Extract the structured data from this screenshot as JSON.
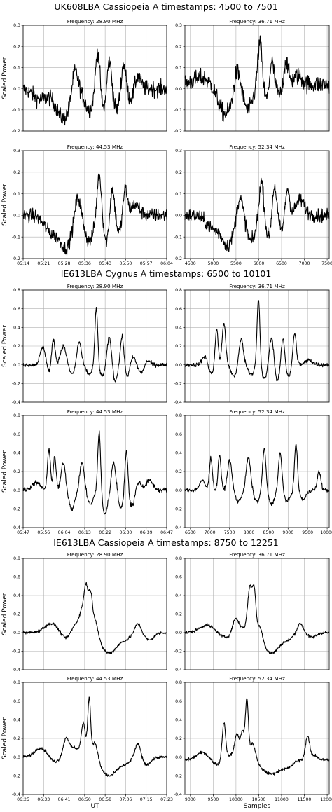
{
  "chart_data": [
    {
      "type": "line",
      "title": "UK608LBA Cassiopeia A timestamps: 4500 to 7501",
      "ylabel": "Scaled Power",
      "ylim": [
        -0.2,
        0.3
      ],
      "yticks": [
        "0.3",
        "0.2",
        "0.1",
        "0.0",
        "-0.1",
        "-0.2"
      ],
      "x_time_ticks": [
        "05:14",
        "05:21",
        "05:28",
        "05:36",
        "05:43",
        "05:50",
        "05:57",
        "06:04"
      ],
      "x_sample_ticks": [
        "4500",
        "5000",
        "5500",
        "6000",
        "6500",
        "7000",
        "7500"
      ],
      "panels": [
        {
          "subtitle": "Frequency: 28.90 MHz",
          "noise": 0.035,
          "baseline": 0.0,
          "peaks": [
            [
              0.12,
              -0.05,
              0.05
            ],
            [
              0.28,
              -0.14,
              0.05
            ],
            [
              0.36,
              0.12,
              0.02
            ],
            [
              0.46,
              -0.1,
              0.03
            ],
            [
              0.52,
              0.2,
              0.015
            ],
            [
              0.56,
              -0.1,
              0.02
            ],
            [
              0.6,
              0.15,
              0.015
            ],
            [
              0.65,
              -0.1,
              0.02
            ],
            [
              0.7,
              0.12,
              0.015
            ],
            [
              0.75,
              -0.05,
              0.02
            ],
            [
              0.8,
              0.06,
              0.02
            ]
          ]
        },
        {
          "subtitle": "Frequency: 36.71 MHz",
          "noise": 0.04,
          "baseline": 0.02,
          "peaks": [
            [
              0.12,
              0.03,
              0.06
            ],
            [
              0.28,
              -0.14,
              0.05
            ],
            [
              0.36,
              0.1,
              0.02
            ],
            [
              0.44,
              -0.12,
              0.03
            ],
            [
              0.52,
              0.2,
              0.015
            ],
            [
              0.57,
              -0.08,
              0.02
            ],
            [
              0.6,
              0.13,
              0.015
            ],
            [
              0.66,
              -0.05,
              0.02
            ],
            [
              0.7,
              0.12,
              0.015
            ],
            [
              0.78,
              0.04,
              0.03
            ]
          ]
        },
        {
          "subtitle": "Frequency: 44.53 MHz",
          "noise": 0.03,
          "baseline": 0.0,
          "peaks": [
            [
              0.2,
              -0.08,
              0.05
            ],
            [
              0.3,
              -0.14,
              0.04
            ],
            [
              0.38,
              0.1,
              0.02
            ],
            [
              0.46,
              -0.12,
              0.03
            ],
            [
              0.53,
              0.2,
              0.015
            ],
            [
              0.58,
              -0.12,
              0.02
            ],
            [
              0.62,
              0.14,
              0.015
            ],
            [
              0.67,
              -0.08,
              0.02
            ],
            [
              0.71,
              0.13,
              0.015
            ],
            [
              0.78,
              0.05,
              0.03
            ]
          ]
        },
        {
          "subtitle": "Frequency: 52.34 MHz",
          "noise": 0.03,
          "baseline": 0.0,
          "peaks": [
            [
              0.2,
              -0.06,
              0.05
            ],
            [
              0.3,
              -0.13,
              0.04
            ],
            [
              0.38,
              0.1,
              0.02
            ],
            [
              0.46,
              -0.12,
              0.03
            ],
            [
              0.53,
              0.17,
              0.015
            ],
            [
              0.58,
              -0.1,
              0.02
            ],
            [
              0.62,
              0.15,
              0.015
            ],
            [
              0.67,
              -0.07,
              0.02
            ],
            [
              0.71,
              0.13,
              0.015
            ],
            [
              0.8,
              0.07,
              0.03
            ]
          ]
        }
      ]
    },
    {
      "type": "line",
      "title": "IE613LBA Cygnus A timestamps: 6500 to 10101",
      "ylabel": "Scaled Power",
      "ylim": [
        -0.4,
        0.8
      ],
      "yticks": [
        "0.8",
        "0.6",
        "0.4",
        "0.2",
        "0.0",
        "-0.2",
        "-0.4"
      ],
      "x_time_ticks": [
        "05:47",
        "05:56",
        "06:04",
        "06:13",
        "06:22",
        "06:30",
        "06:39",
        "06:47"
      ],
      "x_sample_ticks": [
        "6500",
        "7000",
        "7500",
        "8000",
        "8500",
        "9000",
        "9500",
        "10000"
      ],
      "panels": [
        {
          "subtitle": "Frequency: 28.90 MHz",
          "noise": 0.02,
          "baseline": 0.0,
          "peaks": [
            [
              0.14,
              0.2,
              0.02
            ],
            [
              0.18,
              -0.1,
              0.02
            ],
            [
              0.21,
              0.3,
              0.012
            ],
            [
              0.28,
              0.2,
              0.02
            ],
            [
              0.34,
              -0.1,
              0.02
            ],
            [
              0.39,
              0.25,
              0.015
            ],
            [
              0.46,
              -0.1,
              0.02
            ],
            [
              0.51,
              0.62,
              0.01
            ],
            [
              0.55,
              -0.12,
              0.02
            ],
            [
              0.6,
              0.3,
              0.015
            ],
            [
              0.64,
              -0.18,
              0.015
            ],
            [
              0.69,
              0.32,
              0.012
            ],
            [
              0.73,
              -0.15,
              0.02
            ],
            [
              0.76,
              0.12,
              0.02
            ],
            [
              0.83,
              -0.1,
              0.025
            ],
            [
              0.86,
              0.08,
              0.02
            ]
          ]
        },
        {
          "subtitle": "Frequency: 36.71 MHz",
          "noise": 0.02,
          "baseline": 0.0,
          "peaks": [
            [
              0.14,
              0.1,
              0.02
            ],
            [
              0.18,
              -0.1,
              0.02
            ],
            [
              0.22,
              0.4,
              0.01
            ],
            [
              0.27,
              0.45,
              0.012
            ],
            [
              0.34,
              -0.12,
              0.02
            ],
            [
              0.39,
              0.28,
              0.015
            ],
            [
              0.46,
              -0.1,
              0.02
            ],
            [
              0.51,
              0.72,
              0.01
            ],
            [
              0.55,
              -0.15,
              0.02
            ],
            [
              0.6,
              0.3,
              0.015
            ],
            [
              0.64,
              -0.18,
              0.015
            ],
            [
              0.68,
              0.3,
              0.012
            ],
            [
              0.72,
              -0.12,
              0.02
            ],
            [
              0.76,
              0.35,
              0.012
            ],
            [
              0.86,
              0.05,
              0.025
            ]
          ]
        },
        {
          "subtitle": "Frequency: 44.53 MHz",
          "noise": 0.025,
          "baseline": 0.0,
          "peaks": [
            [
              0.09,
              0.08,
              0.03
            ],
            [
              0.18,
              0.45,
              0.01
            ],
            [
              0.22,
              0.35,
              0.01
            ],
            [
              0.28,
              0.3,
              0.015
            ],
            [
              0.34,
              -0.2,
              0.02
            ],
            [
              0.41,
              0.3,
              0.015
            ],
            [
              0.47,
              -0.15,
              0.02
            ],
            [
              0.53,
              0.65,
              0.01
            ],
            [
              0.57,
              -0.25,
              0.02
            ],
            [
              0.63,
              0.3,
              0.015
            ],
            [
              0.68,
              -0.2,
              0.015
            ],
            [
              0.72,
              0.45,
              0.01
            ],
            [
              0.76,
              -0.18,
              0.02
            ],
            [
              0.8,
              0.1,
              0.02
            ],
            [
              0.88,
              0.1,
              0.025
            ]
          ]
        },
        {
          "subtitle": "Frequency: 52.34 MHz",
          "noise": 0.02,
          "baseline": 0.0,
          "peaks": [
            [
              0.12,
              0.1,
              0.02
            ],
            [
              0.18,
              0.35,
              0.01
            ],
            [
              0.24,
              0.38,
              0.01
            ],
            [
              0.31,
              0.32,
              0.015
            ],
            [
              0.37,
              -0.12,
              0.02
            ],
            [
              0.44,
              0.35,
              0.015
            ],
            [
              0.5,
              -0.12,
              0.02
            ],
            [
              0.55,
              0.45,
              0.012
            ],
            [
              0.6,
              -0.15,
              0.02
            ],
            [
              0.66,
              0.4,
              0.012
            ],
            [
              0.71,
              -0.12,
              0.02
            ],
            [
              0.77,
              0.5,
              0.01
            ],
            [
              0.82,
              -0.1,
              0.02
            ],
            [
              0.93,
              0.2,
              0.012
            ]
          ]
        }
      ]
    },
    {
      "type": "line",
      "title": "IE613LBA Cassiopeia A timestamps: 8750 to 12251",
      "ylabel": "Scaled Power",
      "xlabel_time": "UT",
      "xlabel_samples": "Samples",
      "ylim": [
        -0.4,
        0.8
      ],
      "yticks": [
        "0.8",
        "0.6",
        "0.4",
        "0.2",
        "0.0",
        "-0.2",
        "-0.4"
      ],
      "x_time_ticks": [
        "06:25",
        "06:33",
        "06:41",
        "06:50",
        "06:58",
        "07:06",
        "07:15",
        "07:23"
      ],
      "x_sample_ticks": [
        "9000",
        "9500",
        "10000",
        "10500",
        "11000",
        "11500",
        "12000"
      ],
      "panels": [
        {
          "subtitle": "Frequency: 28.90 MHz",
          "noise": 0.015,
          "baseline": 0.0,
          "peaks": [
            [
              0.2,
              0.1,
              0.05
            ],
            [
              0.3,
              -0.08,
              0.04
            ],
            [
              0.36,
              0.1,
              0.03
            ],
            [
              0.41,
              0.2,
              0.02
            ],
            [
              0.44,
              0.45,
              0.015
            ],
            [
              0.47,
              0.35,
              0.012
            ],
            [
              0.5,
              0.2,
              0.02
            ],
            [
              0.6,
              -0.22,
              0.06
            ],
            [
              0.72,
              -0.05,
              0.03
            ],
            [
              0.8,
              0.1,
              0.02
            ],
            [
              0.88,
              -0.08,
              0.03
            ]
          ]
        },
        {
          "subtitle": "Frequency: 36.71 MHz",
          "noise": 0.015,
          "baseline": 0.0,
          "peaks": [
            [
              0.15,
              0.08,
              0.05
            ],
            [
              0.28,
              -0.05,
              0.04
            ],
            [
              0.35,
              0.15,
              0.02
            ],
            [
              0.4,
              0.05,
              0.03
            ],
            [
              0.45,
              0.48,
              0.015
            ],
            [
              0.48,
              0.45,
              0.012
            ],
            [
              0.52,
              0.15,
              0.02
            ],
            [
              0.6,
              -0.22,
              0.06
            ],
            [
              0.72,
              -0.05,
              0.03
            ],
            [
              0.8,
              0.1,
              0.02
            ],
            [
              0.88,
              -0.05,
              0.03
            ]
          ]
        },
        {
          "subtitle": "Frequency: 44.53 MHz",
          "noise": 0.015,
          "baseline": 0.0,
          "peaks": [
            [
              0.12,
              0.1,
              0.04
            ],
            [
              0.22,
              -0.05,
              0.03
            ],
            [
              0.3,
              0.2,
              0.02
            ],
            [
              0.36,
              0.1,
              0.03
            ],
            [
              0.42,
              0.35,
              0.015
            ],
            [
              0.46,
              0.62,
              0.01
            ],
            [
              0.5,
              0.2,
              0.02
            ],
            [
              0.6,
              -0.2,
              0.06
            ],
            [
              0.72,
              -0.05,
              0.03
            ],
            [
              0.8,
              0.15,
              0.02
            ],
            [
              0.86,
              -0.08,
              0.03
            ]
          ]
        },
        {
          "subtitle": "Frequency: 52.34 MHz",
          "noise": 0.015,
          "baseline": -0.03,
          "peaks": [
            [
              0.12,
              0.08,
              0.04
            ],
            [
              0.22,
              -0.05,
              0.03
            ],
            [
              0.27,
              0.4,
              0.012
            ],
            [
              0.32,
              0.05,
              0.03
            ],
            [
              0.36,
              0.25,
              0.015
            ],
            [
              0.4,
              0.3,
              0.015
            ],
            [
              0.43,
              0.6,
              0.01
            ],
            [
              0.47,
              0.2,
              0.02
            ],
            [
              0.6,
              -0.15,
              0.07
            ],
            [
              0.72,
              -0.05,
              0.03
            ],
            [
              0.85,
              0.25,
              0.015
            ],
            [
              0.9,
              0.05,
              0.02
            ]
          ]
        }
      ]
    }
  ]
}
